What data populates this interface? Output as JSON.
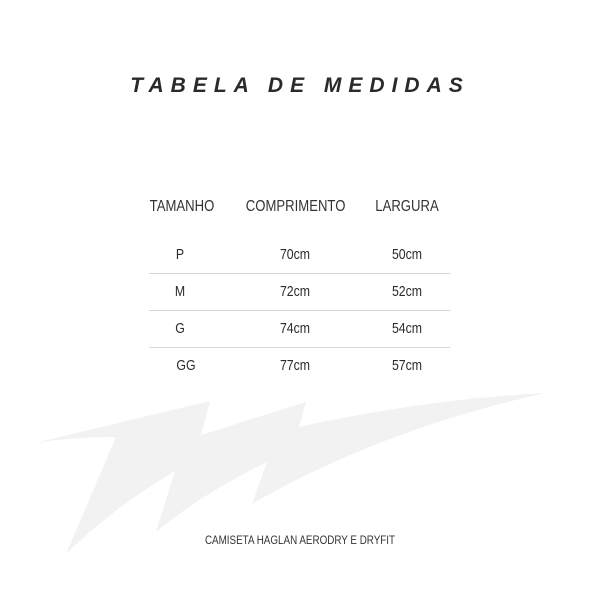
{
  "title": "TABELA DE MEDIDAS",
  "table": {
    "headers": [
      "TAMANHO",
      "COMPRIMENTO",
      "LARGURA"
    ],
    "rows": [
      [
        "P",
        "70cm",
        "50cm"
      ],
      [
        "M",
        "72cm",
        "52cm"
      ],
      [
        "G",
        "74cm",
        "54cm"
      ],
      [
        "GG",
        "77cm",
        "57cm"
      ]
    ]
  },
  "caption": "CAMISETA HAGLAN AERODRY E DRYFIT",
  "colors": {
    "text": "#2b2b2b",
    "watermark": "#f2f2f2",
    "divider": "#d6d6d6"
  }
}
